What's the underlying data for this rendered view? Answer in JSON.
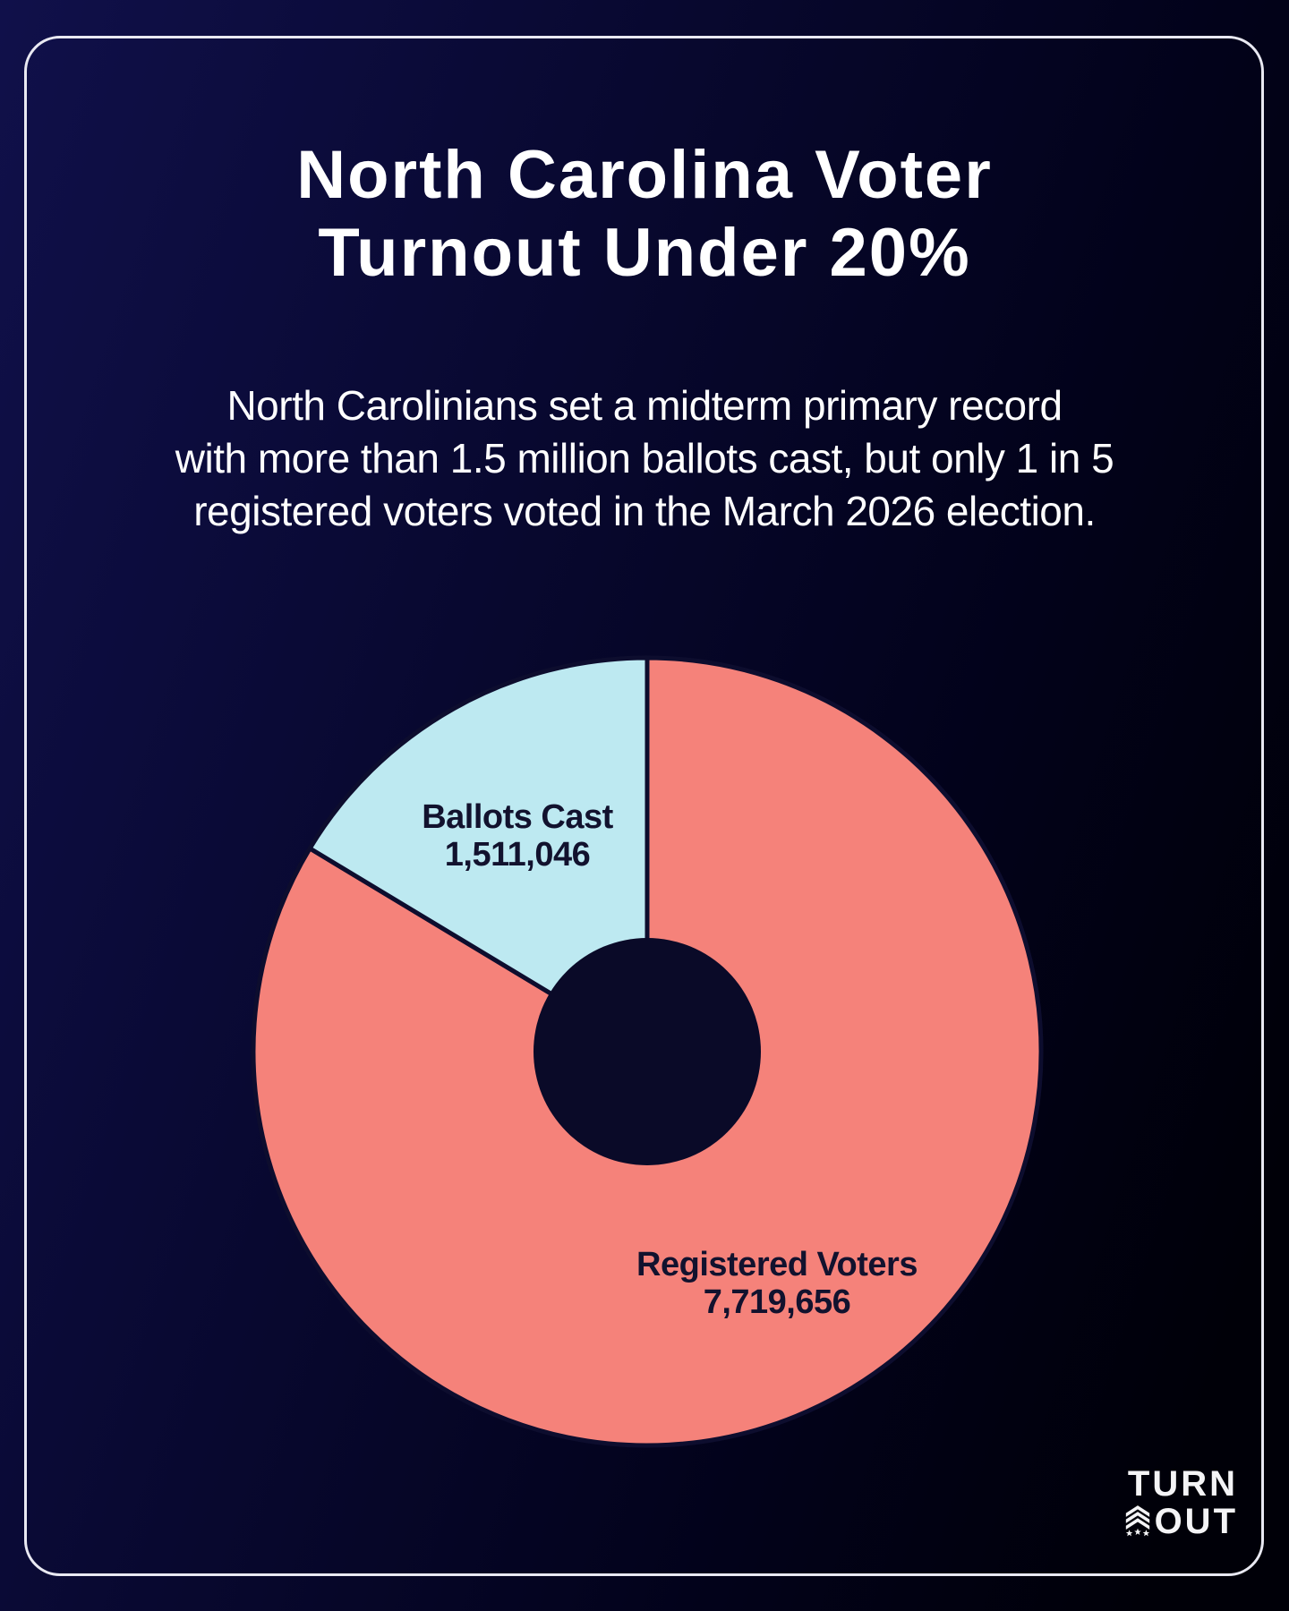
{
  "page": {
    "title_line1": "North Carolina Voter",
    "title_line2": "Turnout Under 20%",
    "subtitle_lines": [
      "North Carolinians set a midterm primary record",
      "with more than 1.5 million ballots cast, but only 1 in 5",
      "registered voters voted in the March 2026 election."
    ]
  },
  "chart_data": {
    "type": "pie",
    "donut": true,
    "start_angle_deg": 0,
    "direction": "clockwise",
    "slices": [
      {
        "label": "Registered Voters",
        "value": 7719656,
        "value_text": "7,719,656",
        "color": "#F5827A"
      },
      {
        "label": "Ballots Cast",
        "value": 1511046,
        "value_text": "1,511,046",
        "color": "#BDE9F1"
      }
    ],
    "slice_border_color": "#0D0D2E",
    "hole_color": "#0A0A28",
    "label_text_color": "#12122E"
  },
  "labels": {
    "ballots_line1": "Ballots Cast",
    "ballots_line2": "1,511,046",
    "registered_line1": "Registered Voters",
    "registered_line2": "7,719,656"
  },
  "logo": {
    "line1": "TURN",
    "line2": "OUT",
    "icon": "chevron-stars-icon"
  },
  "colors": {
    "background_navy": "#10104A",
    "background_black": "#000008",
    "frame_border": "#E9E9F2",
    "title_text": "#FFFFFF",
    "salmon": "#F5827A",
    "light_blue": "#BDE9F1",
    "dark_ink": "#12122E"
  }
}
